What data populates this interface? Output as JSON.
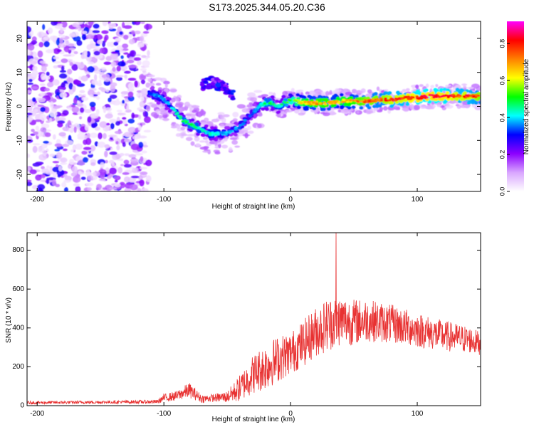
{
  "title": "S173.2025.344.05.20.C36",
  "chart_data": [
    {
      "type": "heatmap",
      "name": "spectrogram",
      "xlabel": "Height of straight line (km)",
      "ylabel": "Frequency (Hz)",
      "xlim": [
        -208,
        150
      ],
      "ylim": [
        -25,
        25
      ],
      "x_ticks": [
        -200,
        -100,
        0,
        100
      ],
      "x_tick_labels": [
        "-200",
        "-100",
        "0",
        "100"
      ],
      "y_ticks": [
        -20,
        -10,
        0,
        10,
        20
      ],
      "y_tick_labels": [
        "-20",
        "-10",
        "0",
        "10",
        "20"
      ],
      "colorbar": {
        "label": "Normalized spectral amplitude",
        "range": [
          0,
          0.92
        ],
        "ticks": [
          0.0,
          0.2,
          0.4,
          0.6,
          0.8
        ],
        "tick_labels": [
          "0.0",
          "0.2",
          "0.4",
          "0.6",
          "0.8"
        ],
        "colors": [
          "#ffffff",
          "#d9a6ff",
          "#8c00ff",
          "#0000ff",
          "#00ffff",
          "#00ff00",
          "#ffff00",
          "#ff8000",
          "#ff0000",
          "#ff00ff"
        ]
      },
      "noise_region": [
        -208,
        -112
      ],
      "ridge": {
        "x": [
          -112,
          -105,
          -100,
          -95,
          -90,
          -85,
          -80,
          -75,
          -70,
          -65,
          -60,
          -55,
          -50,
          -45,
          -40,
          -35,
          -30,
          -25,
          -20,
          -15,
          -10,
          -5,
          0,
          10,
          20,
          30,
          40,
          50,
          60,
          70,
          80,
          90,
          100,
          110,
          120,
          130,
          140,
          150
        ],
        "freq": [
          4,
          3,
          2,
          0,
          -2,
          -4,
          -5,
          -6,
          -7,
          -8,
          -8,
          -8,
          -8,
          -7,
          -6,
          -4,
          -2,
          0,
          1,
          1,
          0,
          1,
          2,
          1,
          1,
          1,
          1.5,
          1.5,
          1.5,
          2,
          2,
          2.5,
          2.5,
          3,
          3,
          3,
          3,
          3
        ],
        "amplitude": [
          0.35,
          0.4,
          0.4,
          0.45,
          0.45,
          0.5,
          0.5,
          0.5,
          0.45,
          0.45,
          0.45,
          0.4,
          0.4,
          0.4,
          0.4,
          0.4,
          0.35,
          0.45,
          0.5,
          0.5,
          0.45,
          0.5,
          0.6,
          0.7,
          0.75,
          0.75,
          0.7,
          0.75,
          0.8,
          0.8,
          0.85,
          0.85,
          0.9,
          0.9,
          0.9,
          0.85,
          0.85,
          0.8
        ]
      },
      "secondary_arc": {
        "x": [
          -70,
          -65,
          -60,
          -55,
          -50,
          -45
        ],
        "freq": [
          6,
          7,
          7,
          6,
          5,
          3
        ],
        "amplitude": 0.3
      }
    },
    {
      "type": "line",
      "name": "snr",
      "xlabel": "Height of straight line (km)",
      "ylabel": "SNR (10 * v/v)",
      "color": "#e83232",
      "xlim": [
        -208,
        150
      ],
      "ylim": [
        0,
        890
      ],
      "x_ticks": [
        -200,
        -100,
        0,
        100
      ],
      "x_tick_labels": [
        "-200",
        "-100",
        "0",
        "100"
      ],
      "y_ticks": [
        0,
        200,
        400,
        600,
        800
      ],
      "y_tick_labels": [
        "0",
        "200",
        "400",
        "600",
        "800"
      ],
      "envelope": {
        "x": [
          -208,
          -150,
          -105,
          -100,
          -90,
          -80,
          -70,
          -60,
          -50,
          -40,
          -30,
          -20,
          -10,
          0,
          10,
          20,
          30,
          40,
          50,
          60,
          80,
          100,
          120,
          140,
          150
        ],
        "mean": [
          15,
          18,
          20,
          40,
          50,
          80,
          35,
          40,
          45,
          90,
          160,
          200,
          240,
          270,
          320,
          380,
          420,
          440,
          430,
          440,
          420,
          390,
          360,
          340,
          320
        ],
        "spread": [
          8,
          8,
          10,
          20,
          25,
          40,
          20,
          20,
          30,
          70,
          100,
          120,
          120,
          110,
          120,
          130,
          140,
          130,
          120,
          110,
          100,
          90,
          80,
          70,
          60
        ]
      },
      "peak": {
        "x": 36,
        "y": 890
      }
    }
  ]
}
